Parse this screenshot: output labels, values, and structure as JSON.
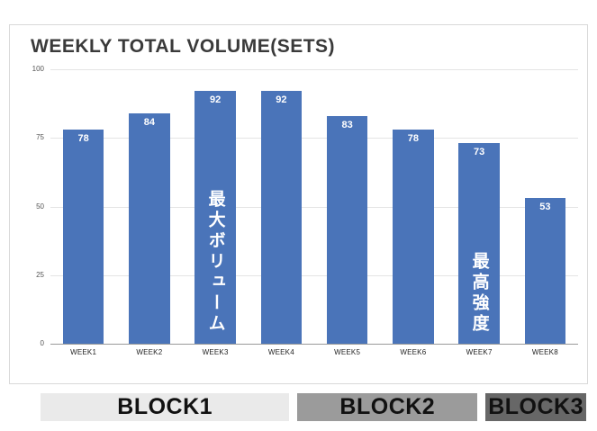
{
  "chart_data": {
    "type": "bar",
    "title": "WEEKLY TOTAL VOLUME(SETS)",
    "categories": [
      "WEEK1",
      "WEEK2",
      "WEEK3",
      "WEEK4",
      "WEEK5",
      "WEEK6",
      "WEEK7",
      "WEEK8"
    ],
    "values": [
      78,
      84,
      92,
      92,
      83,
      78,
      73,
      53
    ],
    "xlabel": "",
    "ylabel": "",
    "ylim": [
      0,
      100
    ],
    "yticks": [
      0,
      25,
      50,
      75,
      100
    ],
    "grid": true,
    "legend": "none",
    "bar_color": "#4a74b9",
    "value_label_color": "#ffffff",
    "annotations": [
      {
        "week": "WEEK3",
        "text": "最大ボリューム"
      },
      {
        "week": "WEEK7",
        "text": "最高強度"
      }
    ]
  },
  "blocks": [
    {
      "label": "BLOCK1",
      "color": "#eaeaea",
      "text_color": "#111111",
      "width_pct": 47
    },
    {
      "label": "BLOCK2",
      "color": "#9b9b9b",
      "text_color": "#111111",
      "width_pct": 34
    },
    {
      "label": "BLOCK3",
      "color": "#676767",
      "text_color": "#111111",
      "width_pct": 19
    }
  ]
}
